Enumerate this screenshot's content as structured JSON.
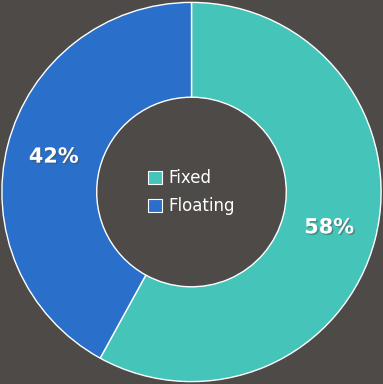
{
  "chart_data": {
    "type": "pie",
    "categories": [
      "Fixed",
      "Floating"
    ],
    "values": [
      58,
      42
    ],
    "value_labels": [
      "58%",
      "42%"
    ],
    "colors": [
      "#45c4b9",
      "#2a6fca"
    ],
    "data_labels": true,
    "legend": "center"
  }
}
